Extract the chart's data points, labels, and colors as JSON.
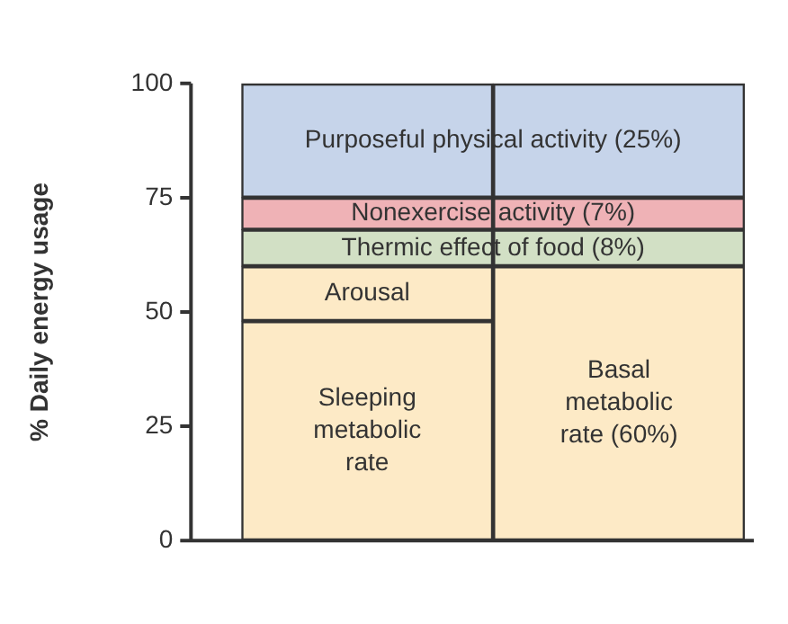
{
  "chart_data": {
    "type": "bar",
    "stacked": true,
    "ylabel": "% Daily energy usage",
    "categories": [
      null,
      null
    ],
    "series": [
      {
        "name": "Sleeping metabolic rate",
        "color": "#fdeac6",
        "values": [
          48,
          null
        ]
      },
      {
        "name": "Arousal",
        "color": "#fdeac6",
        "values": [
          12,
          null
        ]
      },
      {
        "name": "Basal metabolic rate (60%)",
        "color": "#fdeac6",
        "values": [
          null,
          60
        ]
      },
      {
        "name": "Thermic effect of food (8%)",
        "color": "#d2e0c5",
        "values": [
          8,
          8
        ]
      },
      {
        "name": "Nonexercise activity (7%)",
        "color": "#efb2b6",
        "values": [
          7,
          7
        ]
      },
      {
        "name": "Purposeful physical activity (25%)",
        "color": "#c6d4ea",
        "values": [
          25,
          25
        ]
      }
    ],
    "ylim": [
      0,
      100
    ],
    "yticks": [
      0,
      25,
      50,
      75,
      100
    ],
    "grid": false,
    "legend": false,
    "tick_labels": "y"
  }
}
